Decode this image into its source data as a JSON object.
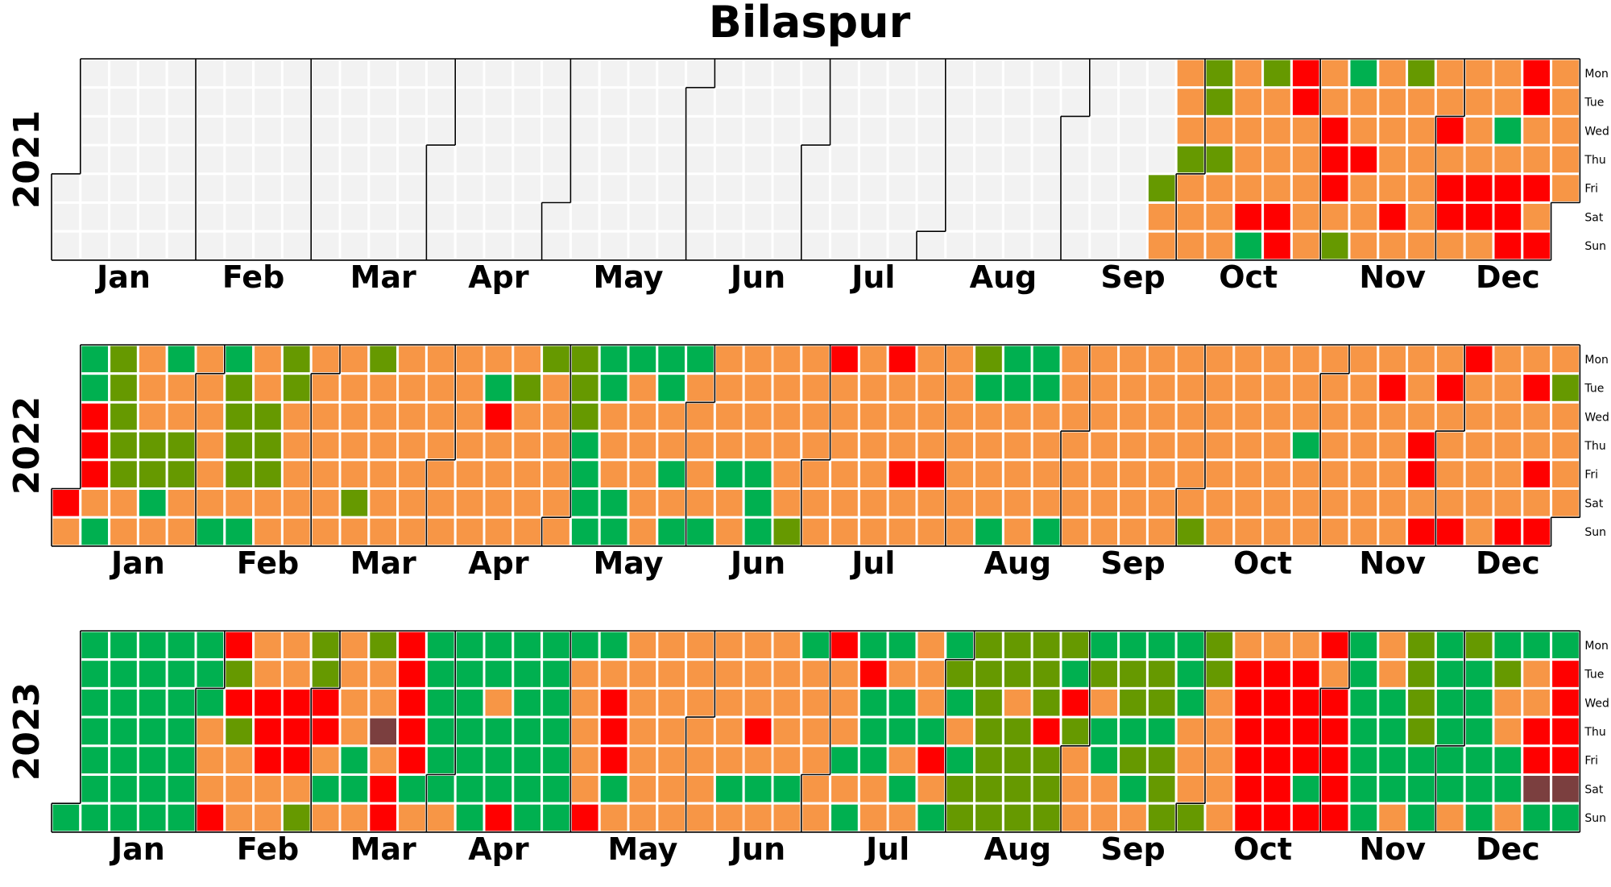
{
  "chart_data": {
    "type": "heatmap",
    "title": "Bilaspur",
    "weekday_labels": [
      "Mon",
      "Tue",
      "Wed",
      "Thu",
      "Fri",
      "Sat",
      "Sun"
    ],
    "month_labels": [
      "Jan",
      "Feb",
      "Mar",
      "Apr",
      "May",
      "Jun",
      "Jul",
      "Aug",
      "Sep",
      "Oct",
      "Nov",
      "Dec"
    ],
    "colors": {
      "none": "#f2f2f2",
      "good": "#00b050",
      "satisfactory": "#669900",
      "moderate": "#f79646",
      "poor": "#ff0000",
      "very_poor": "#7b3f3f",
      "grid_line": "#ffffff",
      "month_border": "#000000"
    },
    "years": [
      {
        "year": "2021",
        "first_weekday": 4,
        "leap": false,
        "exceptions": {
          "g": [
            "2021-10-17",
            "2021-11-08",
            "2021-12-15"
          ],
          "s": [
            "2021-09-24",
            "2021-09-30",
            "2021-10-04",
            "2021-10-05",
            "2021-10-07",
            "2021-10-18",
            "2021-11-07",
            "2021-11-22"
          ],
          "p": [
            "2021-10-16",
            "2021-10-23",
            "2021-10-24",
            "2021-10-25",
            "2021-10-26",
            "2021-11-03",
            "2021-11-04",
            "2021-11-05",
            "2021-11-11",
            "2021-11-20",
            "2021-12-01",
            "2021-12-03",
            "2021-12-04",
            "2021-12-10",
            "2021-12-11",
            "2021-12-17",
            "2021-12-18",
            "2021-12-19",
            "2021-12-20",
            "2021-12-21",
            "2021-12-24",
            "2021-12-26"
          ],
          "v": []
        },
        "default_category": "m",
        "data_start": "2021-09-24",
        "data_end": "2021-12-31"
      },
      {
        "year": "2022",
        "first_weekday": 5,
        "leap": false,
        "exceptions": {
          "g": [
            "2022-01-03",
            "2022-01-04",
            "2022-01-05",
            "2022-01-06",
            "2022-01-07",
            "2022-01-09",
            "2022-01-22",
            "2022-01-24",
            "2022-02-06",
            "2022-02-07",
            "2022-02-13",
            "2022-04-12",
            "2022-05-03",
            "2022-05-04",
            "2022-05-05",
            "2022-05-06",
            "2022-05-07",
            "2022-05-08",
            "2022-05-09",
            "2022-05-10",
            "2022-05-14",
            "2022-05-15",
            "2022-05-16",
            "2022-05-23",
            "2022-05-24",
            "2022-05-27",
            "2022-05-29",
            "2022-05-30",
            "2022-06-05",
            "2022-06-10",
            "2022-06-17",
            "2022-06-18",
            "2022-06-19",
            "2022-08-09",
            "2022-08-09",
            "2022-08-14",
            "2022-08-15",
            "2022-08-16",
            "2022-08-22",
            "2022-08-23",
            "2022-08-28",
            "2022-10-27"
          ],
          "s": [
            "2022-01-10",
            "2022-01-11",
            "2022-01-12",
            "2022-01-13",
            "2022-01-14",
            "2022-01-20",
            "2022-01-21",
            "2022-01-27",
            "2022-01-28",
            "2022-02-08",
            "2022-02-09",
            "2022-02-10",
            "2022-02-11",
            "2022-02-16",
            "2022-02-17",
            "2022-02-18",
            "2022-02-21",
            "2022-02-22",
            "2022-03-12",
            "2022-03-14",
            "2022-04-19",
            "2022-04-25",
            "2022-05-02",
            "2022-05-03",
            "2022-05-04",
            "2022-06-26",
            "2022-08-08",
            "2022-10-02",
            "2022-12-27"
          ],
          "p": [
            "2022-01-01",
            "2022-01-05",
            "2022-01-06",
            "2022-01-07",
            "2022-04-13",
            "2022-07-04",
            "2022-07-18",
            "2022-07-22",
            "2022-07-29",
            "2022-11-15",
            "2022-11-29",
            "2022-11-25",
            "2022-11-27",
            "2022-12-04",
            "2022-12-05",
            "2022-12-18",
            "2022-12-20",
            "2022-12-23",
            "2022-12-25",
            "2022-11-24"
          ],
          "v": []
        },
        "default_category": "m",
        "data_start": "2022-01-01",
        "data_end": "2022-12-31"
      },
      {
        "year": "2023",
        "first_weekday": 6,
        "leap": false,
        "exceptions": {
          "g": [
            "2023-01-01",
            "2023-01-02",
            "2023-01-03",
            "2023-01-04",
            "2023-01-05",
            "2023-01-06",
            "2023-01-07",
            "2023-01-08",
            "2023-01-09",
            "2023-01-10",
            "2023-01-11",
            "2023-01-12",
            "2023-01-13",
            "2023-01-14",
            "2023-01-15",
            "2023-01-16",
            "2023-01-17",
            "2023-01-18",
            "2023-01-19",
            "2023-01-20",
            "2023-01-21",
            "2023-01-22",
            "2023-01-23",
            "2023-01-24",
            "2023-01-25",
            "2023-01-26",
            "2023-01-27",
            "2023-01-28",
            "2023-01-29",
            "2023-01-30",
            "2023-01-31",
            "2023-02-01",
            "2023-03-04",
            "2023-03-10",
            "2023-03-11",
            "2023-03-25",
            "2023-03-27",
            "2023-03-28",
            "2023-03-29",
            "2023-03-30",
            "2023-03-31",
            "2023-04-01",
            "2023-04-03",
            "2023-04-04",
            "2023-04-05",
            "2023-04-06",
            "2023-04-07",
            "2023-04-08",
            "2023-04-09",
            "2023-04-10",
            "2023-04-11",
            "2023-04-13",
            "2023-04-14",
            "2023-04-15",
            "2023-04-17",
            "2023-04-18",
            "2023-04-19",
            "2023-04-20",
            "2023-04-21",
            "2023-04-22",
            "2023-04-23",
            "2023-04-24",
            "2023-04-25",
            "2023-04-26",
            "2023-04-27",
            "2023-04-28",
            "2023-04-29",
            "2023-04-30",
            "2023-05-01",
            "2023-05-08",
            "2023-05-13",
            "2023-06-10",
            "2023-06-17",
            "2023-06-24",
            "2023-06-26",
            "2023-07-07",
            "2023-07-09",
            "2023-07-10",
            "2023-07-12",
            "2023-07-13",
            "2023-07-14",
            "2023-07-17",
            "2023-07-19",
            "2023-07-20",
            "2023-07-22",
            "2023-07-27",
            "2023-07-30",
            "2023-07-31",
            "2023-08-02",
            "2023-08-04",
            "2023-08-29",
            "2023-09-04",
            "2023-09-07",
            "2023-09-08",
            "2023-09-11",
            "2023-09-14",
            "2023-09-16",
            "2023-09-18",
            "2023-09-21",
            "2023-09-25",
            "2023-09-26",
            "2023-09-27",
            "2023-10-28",
            "2023-11-06",
            "2023-11-07",
            "2023-11-08",
            "2023-11-09",
            "2023-11-10",
            "2023-11-11",
            "2023-11-12",
            "2023-11-15",
            "2023-11-16",
            "2023-11-17",
            "2023-11-18",
            "2023-11-24",
            "2023-11-25",
            "2023-11-26",
            "2023-11-27",
            "2023-11-28",
            "2023-11-29",
            "2023-11-30",
            "2023-12-01",
            "2023-12-02",
            "2023-12-05",
            "2023-12-06",
            "2023-12-07",
            "2023-12-08",
            "2023-12-09",
            "2023-12-10",
            "2023-12-11",
            "2023-12-15",
            "2023-12-16",
            "2023-12-18",
            "2023-12-24",
            "2023-12-25",
            "2023-12-31"
          ],
          "s": [
            "2023-02-07",
            "2023-02-09",
            "2023-02-26",
            "2023-02-27",
            "2023-02-28",
            "2023-03-13",
            "2023-08-01",
            "2023-08-05",
            "2023-08-06",
            "2023-08-07",
            "2023-08-08",
            "2023-08-09",
            "2023-08-10",
            "2023-08-11",
            "2023-08-12",
            "2023-08-13",
            "2023-08-14",
            "2023-08-15",
            "2023-08-17",
            "2023-08-18",
            "2023-08-19",
            "2023-08-20",
            "2023-08-21",
            "2023-08-22",
            "2023-08-23",
            "2023-08-25",
            "2023-08-26",
            "2023-08-27",
            "2023-08-28",
            "2023-08-31",
            "2023-09-05",
            "2023-09-12",
            "2023-09-13",
            "2023-09-15",
            "2023-09-19",
            "2023-09-20",
            "2023-09-22",
            "2023-09-23",
            "2023-09-24",
            "2023-10-01",
            "2023-10-02",
            "2023-10-03",
            "2023-11-20",
            "2023-11-21",
            "2023-11-22",
            "2023-11-23",
            "2023-12-04",
            "2023-12-12"
          ],
          "p": [
            "2023-02-05",
            "2023-02-06",
            "2023-02-08",
            "2023-02-15",
            "2023-02-16",
            "2023-02-17",
            "2023-02-22",
            "2023-02-23",
            "2023-02-24",
            "2023-03-01",
            "2023-03-02",
            "2023-03-18",
            "2023-03-19",
            "2023-03-20",
            "2023-03-21",
            "2023-03-22",
            "2023-03-23",
            "2023-03-24",
            "2023-04-16",
            "2023-05-07",
            "2023-05-10",
            "2023-05-11",
            "2023-05-12",
            "2023-06-15",
            "2023-07-03",
            "2023-07-11",
            "2023-07-28",
            "2023-08-24",
            "2023-08-30",
            "2023-10-10",
            "2023-10-11",
            "2023-10-12",
            "2023-10-13",
            "2023-10-14",
            "2023-10-15",
            "2023-10-17",
            "2023-10-18",
            "2023-10-19",
            "2023-10-20",
            "2023-10-21",
            "2023-10-22",
            "2023-10-24",
            "2023-10-25",
            "2023-10-26",
            "2023-10-27",
            "2023-10-29",
            "2023-10-30",
            "2023-11-01",
            "2023-11-02",
            "2023-11-03",
            "2023-11-04",
            "2023-11-05",
            "2023-12-21",
            "2023-12-22",
            "2023-12-26",
            "2023-12-27",
            "2023-12-28",
            "2023-12-29"
          ],
          "v": [
            "2023-03-16",
            "2023-12-23",
            "2023-12-30"
          ]
        },
        "default_category": "m",
        "data_start": "2023-01-01",
        "data_end": "2023-12-31"
      }
    ]
  }
}
